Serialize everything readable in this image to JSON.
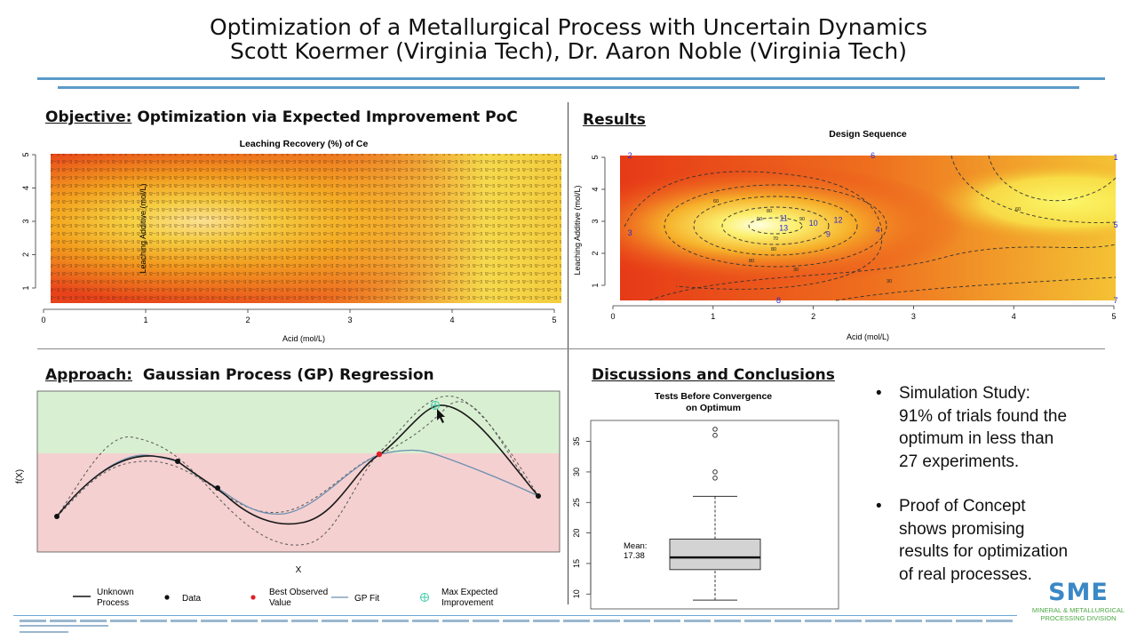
{
  "header": {
    "title": "Optimization of a Metallurgical Process with Uncertain Dynamics",
    "authors": "Scott Koermer (Virginia Tech), Dr. Aaron Noble (Virginia Tech)"
  },
  "objective": {
    "heading_label": "Objective:",
    "heading_text": " Optimization via Expected Improvement PoC",
    "chart_title": "Leaching Recovery (%) of Ce",
    "xlabel": "Acid (mol/L)",
    "ylabel": "Leaching Additive (mol/L)",
    "xticks": [
      "0",
      "1",
      "2",
      "3",
      "4",
      "5"
    ],
    "yticks": [
      "1",
      "2",
      "3",
      "4",
      "5"
    ]
  },
  "results": {
    "heading": "Results",
    "chart_title": "Design Sequence",
    "xlabel": "Acid (mol/L)",
    "ylabel": "Leaching Additive (mol/L)",
    "xticks": [
      "0",
      "1",
      "2",
      "3",
      "4",
      "5"
    ],
    "yticks": [
      "1",
      "2",
      "3",
      "4",
      "5"
    ],
    "points": [
      {
        "label": "2",
        "x": 0.1,
        "y": 5.0
      },
      {
        "label": "6",
        "x": 2.55,
        "y": 5.0
      },
      {
        "label": "1",
        "x": 5.0,
        "y": 4.95
      },
      {
        "label": "3",
        "x": 0.1,
        "y": 2.6
      },
      {
        "label": "5",
        "x": 5.0,
        "y": 2.85
      },
      {
        "label": "4",
        "x": 2.6,
        "y": 2.7
      },
      {
        "label": "11",
        "x": 1.65,
        "y": 3.05
      },
      {
        "label": "13",
        "x": 1.65,
        "y": 2.75
      },
      {
        "label": "10",
        "x": 1.95,
        "y": 2.9
      },
      {
        "label": "12",
        "x": 2.2,
        "y": 3.0
      },
      {
        "label": "9",
        "x": 2.1,
        "y": 2.55
      },
      {
        "label": "8",
        "x": 1.6,
        "y": 0.5
      },
      {
        "label": "7",
        "x": 5.0,
        "y": 0.5
      }
    ],
    "contour_labels": [
      "60",
      "60",
      "80",
      "50",
      "70",
      "80",
      "90",
      "80",
      "30",
      "30"
    ]
  },
  "approach": {
    "heading_label": "Approach:",
    "heading_text": "  Gaussian Process (GP) Regression",
    "ylabel": "f(X)",
    "xlabel": "X",
    "legend": [
      {
        "label": "Unknown\nProcess"
      },
      {
        "label": "Data"
      },
      {
        "label": "Best Observed\nValue"
      },
      {
        "label": "GP Fit"
      },
      {
        "label": "Max Expected\nImprovement"
      }
    ]
  },
  "discussion": {
    "heading": "Discussions and Conclusions",
    "chart_title_1": "Tests Before Convergence",
    "chart_title_2": "on Optimum",
    "mean_label": "Mean:",
    "mean_value": "17.38",
    "yticks": [
      "10",
      "15",
      "20",
      "25",
      "30",
      "35"
    ]
  },
  "conclusions": [
    {
      "lines": [
        "Simulation Study:",
        "91% of trials found the",
        "optimum in less than",
        "27 experiments."
      ]
    },
    {
      "lines": [
        "Proof of Concept",
        "shows promising",
        "results for optimization",
        "of real processes."
      ]
    }
  ],
  "logo": {
    "name": "SME",
    "line1": "MINERAL & METALLURGICAL",
    "line2": "PROCESSING DIVISION"
  },
  "chart_data": [
    {
      "type": "heatmap",
      "title": "Leaching Recovery (%) of Ce",
      "xlabel": "Acid (mol/L)",
      "ylabel": "Leaching Additive (mol/L)",
      "xlim": [
        0,
        5
      ],
      "ylim": [
        0.5,
        5
      ]
    },
    {
      "type": "scatter",
      "title": "Design Sequence",
      "xlabel": "Acid (mol/L)",
      "ylabel": "Leaching Additive (mol/L)",
      "xlim": [
        0,
        5
      ],
      "ylim": [
        0.5,
        5
      ]
    },
    {
      "type": "line",
      "xlabel": "X",
      "ylabel": "f(X)",
      "series": [
        {
          "name": "Unknown Process"
        },
        {
          "name": "Data"
        },
        {
          "name": "Best Observed Value"
        },
        {
          "name": "GP Fit"
        },
        {
          "name": "Max Expected Improvement"
        }
      ]
    },
    {
      "type": "box",
      "title": "Tests Before Convergence on Optimum",
      "ylim": [
        8,
        38
      ],
      "whisker_low": 9,
      "q1": 14,
      "median": 16,
      "q3": 19,
      "whisker_high": 26,
      "outliers": [
        29,
        30,
        36,
        37
      ],
      "mean": 17.38
    }
  ]
}
